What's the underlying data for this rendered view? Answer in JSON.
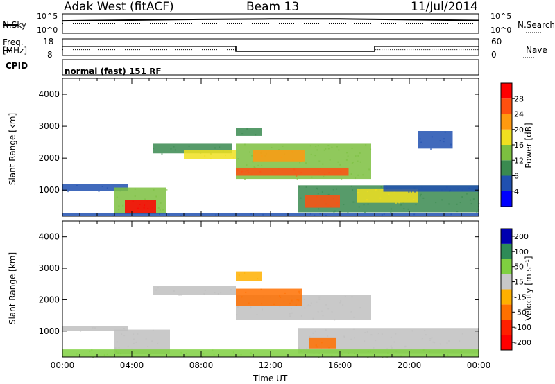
{
  "header": {
    "title": "Adak West (fitACF)",
    "beam": "Beam 13",
    "date": "11/Jul/2014"
  },
  "labels": {
    "nsky": "N.Sky",
    "nsearch": "N.Search",
    "freq": "Freq.",
    "mhz": "[MHz]",
    "nave": "Nave",
    "cpid": "CPID",
    "cpid_value": "normal (fast) 151 RF"
  },
  "noise_panel": {
    "left_ticks": [
      "10^5",
      "10^0"
    ],
    "right_ticks": [
      "10^5",
      "10^0"
    ]
  },
  "freq_panel": {
    "left_ticks": [
      "18",
      "8"
    ],
    "right_ticks": [
      "60",
      "0"
    ]
  },
  "power_panel": {
    "ylabel": "Slant Range [km]",
    "colorbar_label": "Power [dB]",
    "colorbar_ticks": [
      "28",
      "24",
      "20",
      "16",
      "12",
      "8",
      "4"
    ]
  },
  "velocity_panel": {
    "ylabel": "Slant Range [km]",
    "colorbar_label": "Velocity [m s⁻¹]",
    "colorbar_ticks": [
      "200",
      "100",
      "50",
      "15",
      "-15",
      "-50",
      "-100",
      "-200"
    ]
  },
  "xaxis": {
    "label": "Time UT",
    "ticks": [
      "00:00",
      "04:00",
      "08:00",
      "12:00",
      "16:00",
      "20:00",
      "00:00"
    ]
  },
  "colors": {
    "power_scale": [
      "#0000ff",
      "#2050b0",
      "#3a8a50",
      "#7cc040",
      "#f0e020",
      "#ff9a10",
      "#ff5010",
      "#ff0000"
    ],
    "velocity_scale": [
      "#0000b0",
      "#2e8b57",
      "#7fd040",
      "#c8c8c8",
      "#ffb000",
      "#ff7000",
      "#ff2000",
      "#ff0000"
    ],
    "ground_scatter": "#c0c0c0"
  },
  "chart_data": [
    {
      "type": "line",
      "title": "N.Sky / N.Search",
      "x": [
        0,
        4,
        8,
        12,
        16,
        20,
        24
      ],
      "values_log10": [
        3.2,
        3.4,
        3.6,
        3.7,
        3.7,
        3.5,
        3.3
      ],
      "ylim_log10": [
        0,
        5
      ]
    },
    {
      "type": "line",
      "title": "Freq. [MHz]",
      "series": [
        {
          "name": "Freq",
          "x": [
            0,
            10,
            10,
            18,
            18,
            24
          ],
          "values": [
            13.5,
            13.5,
            10.5,
            10.5,
            13.5,
            13.5
          ]
        },
        {
          "name": "Nave",
          "x": [
            0,
            10,
            10,
            18,
            18,
            24
          ],
          "values": [
            21,
            21,
            15,
            15,
            21,
            21
          ]
        }
      ]
    },
    {
      "type": "heatmap",
      "title": "Power [dB]",
      "xlim": [
        0,
        24
      ],
      "ylim": [
        180,
        4500
      ],
      "xlabel": "Time UT",
      "ylabel": "Slant Range [km]",
      "regions": [
        {
          "t0": 0.0,
          "t1": 3.8,
          "r0": 980,
          "r1": 1200,
          "level": 1
        },
        {
          "t0": 3.0,
          "t1": 6.0,
          "r0": 250,
          "r1": 1080,
          "level": 3
        },
        {
          "t0": 3.6,
          "t1": 5.4,
          "r0": 260,
          "r1": 700,
          "level": 7
        },
        {
          "t0": 0.0,
          "t1": 24.0,
          "r0": 200,
          "r1": 280,
          "level": 1
        },
        {
          "t0": 5.2,
          "t1": 9.8,
          "r0": 2150,
          "r1": 2450,
          "level": 2
        },
        {
          "t0": 7.0,
          "t1": 10.0,
          "r0": 1980,
          "r1": 2250,
          "level": 4
        },
        {
          "t0": 10.0,
          "t1": 17.8,
          "r0": 1350,
          "r1": 2450,
          "level": 3
        },
        {
          "t0": 10.0,
          "t1": 16.5,
          "r0": 1450,
          "r1": 1700,
          "level": 6
        },
        {
          "t0": 11.0,
          "t1": 14.0,
          "r0": 1900,
          "r1": 2250,
          "level": 5
        },
        {
          "t0": 10.0,
          "t1": 11.5,
          "r0": 2700,
          "r1": 2950,
          "level": 2
        },
        {
          "t0": 13.6,
          "t1": 24.0,
          "r0": 300,
          "r1": 1150,
          "level": 2
        },
        {
          "t0": 14.0,
          "t1": 16.0,
          "r0": 450,
          "r1": 850,
          "level": 6
        },
        {
          "t0": 17.0,
          "t1": 20.5,
          "r0": 600,
          "r1": 1050,
          "level": 4
        },
        {
          "t0": 18.5,
          "t1": 24.0,
          "r0": 950,
          "r1": 1150,
          "level": 1
        },
        {
          "t0": 20.5,
          "t1": 22.5,
          "r0": 2300,
          "r1": 2850,
          "level": 1
        }
      ]
    },
    {
      "type": "heatmap",
      "title": "Velocity [m s-1]",
      "xlim": [
        0,
        24
      ],
      "ylim": [
        180,
        4500
      ],
      "xlabel": "Time UT",
      "ylabel": "Slant Range [km]",
      "regions": [
        {
          "t0": 0.0,
          "t1": 3.8,
          "r0": 1000,
          "r1": 1150,
          "vel": "gs"
        },
        {
          "t0": 3.0,
          "t1": 6.2,
          "r0": 280,
          "r1": 1050,
          "vel": "gs"
        },
        {
          "t0": 5.2,
          "t1": 10.0,
          "r0": 2150,
          "r1": 2450,
          "vel": "gs"
        },
        {
          "t0": 10.0,
          "t1": 17.8,
          "r0": 1350,
          "r1": 2150,
          "vel": "gs"
        },
        {
          "t0": 10.0,
          "t1": 13.8,
          "r0": 1800,
          "r1": 2350,
          "vel": -60
        },
        {
          "t0": 10.0,
          "t1": 11.5,
          "r0": 2600,
          "r1": 2900,
          "vel": -40
        },
        {
          "t0": 13.6,
          "t1": 24.0,
          "r0": 300,
          "r1": 1100,
          "vel": "gs"
        },
        {
          "t0": 14.2,
          "t1": 15.8,
          "r0": 450,
          "r1": 800,
          "vel": -70
        },
        {
          "t0": 0.0,
          "t1": 24.0,
          "r0": 180,
          "r1": 420,
          "vel": 25
        }
      ]
    }
  ]
}
